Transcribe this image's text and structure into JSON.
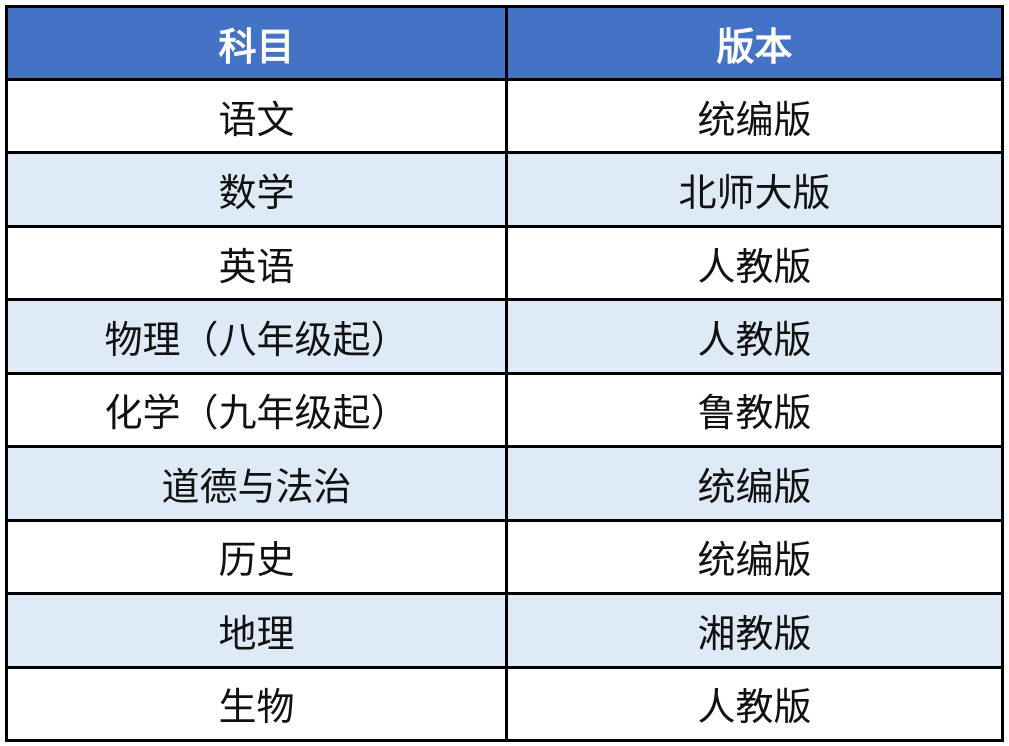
{
  "colors": {
    "header_bg": "#4472C4",
    "alt_row_bg": "#DEEAF6"
  },
  "headers": [
    "科目",
    "版本"
  ],
  "rows": [
    [
      "语文",
      "统编版"
    ],
    [
      "数学",
      "北师大版"
    ],
    [
      "英语",
      "人教版"
    ],
    [
      "物理（八年级起）",
      "人教版"
    ],
    [
      "化学（九年级起）",
      "鲁教版"
    ],
    [
      "道德与法治",
      "统编版"
    ],
    [
      "历史",
      "统编版"
    ],
    [
      "地理",
      "湘教版"
    ],
    [
      "生物",
      "人教版"
    ]
  ]
}
